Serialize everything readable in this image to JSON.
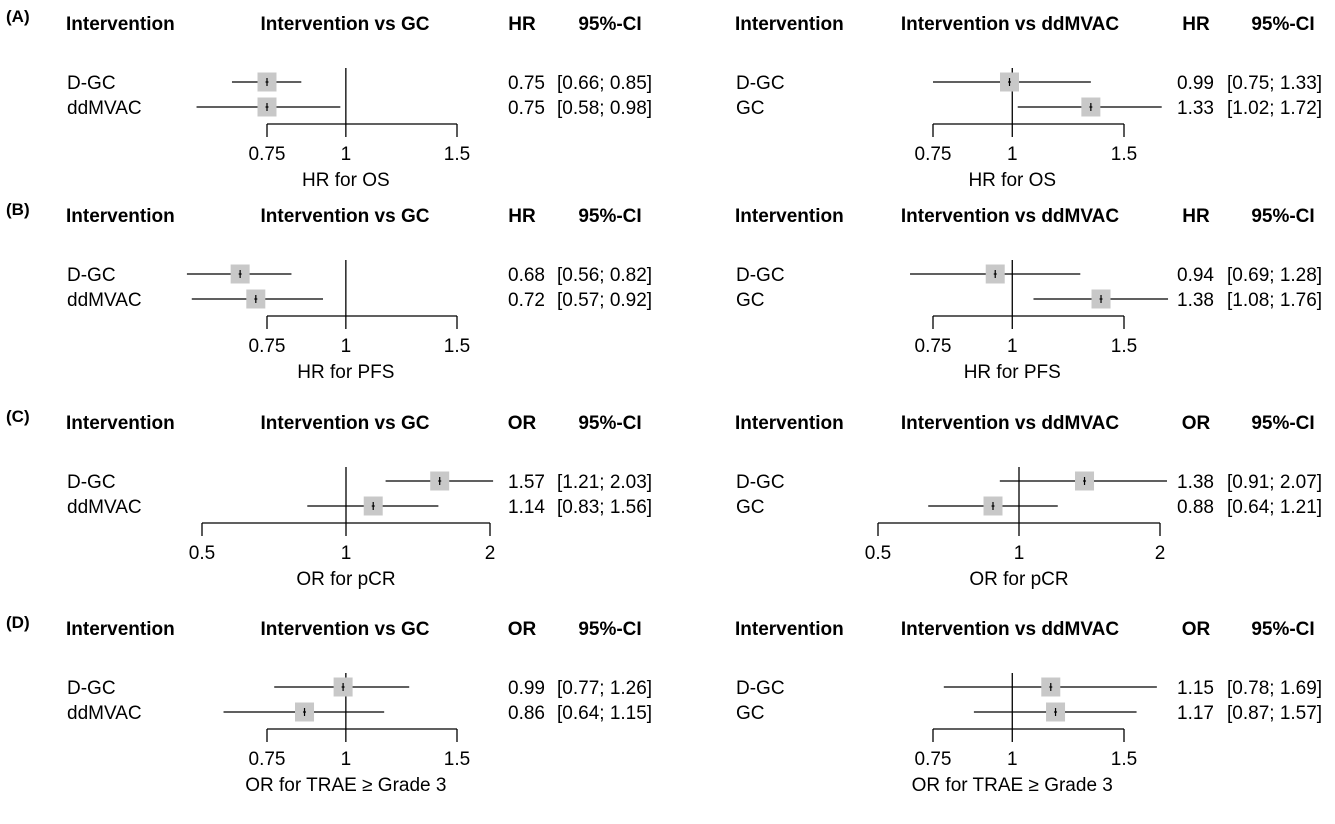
{
  "panel_labels": [
    "(A)",
    "(B)",
    "(C)",
    "(D)"
  ],
  "header": {
    "intervention": "Intervention"
  },
  "colors": {
    "box": "#c8c8c8",
    "line": "#000000"
  },
  "chart_data": [
    {
      "type": "forest",
      "panel": "(A)",
      "comparator": "GC",
      "title": "Intervention vs GC",
      "metric": "HR",
      "ci_label": "95%-CI",
      "xlabel": "HR for OS",
      "scale": "log",
      "ref": 1,
      "ticks": [
        0.75,
        1,
        1.5
      ],
      "tick_labels": [
        "0.75",
        "1",
        "1.5"
      ],
      "xlim": [
        0.62,
        1.5
      ],
      "rows": [
        {
          "label": "D-GC",
          "est": 0.75,
          "lo": 0.66,
          "hi": 0.85,
          "text": "0.75",
          "ci": "[0.66; 0.85]"
        },
        {
          "label": "ddMVAC",
          "est": 0.75,
          "lo": 0.58,
          "hi": 0.98,
          "text": "0.75",
          "ci": "[0.58; 0.98]"
        }
      ]
    },
    {
      "type": "forest",
      "panel": "(A)",
      "comparator": "ddMVAC",
      "title": "Intervention vs ddMVAC",
      "metric": "HR",
      "ci_label": "95%-CI",
      "xlabel": "HR for OS",
      "scale": "log",
      "ref": 1,
      "ticks": [
        0.75,
        1,
        1.5
      ],
      "tick_labels": [
        "0.75",
        "1",
        "1.5"
      ],
      "xlim": [
        0.62,
        1.5
      ],
      "rows": [
        {
          "label": "D-GC",
          "est": 0.99,
          "lo": 0.75,
          "hi": 1.33,
          "text": "0.99",
          "ci": "[0.75; 1.33]"
        },
        {
          "label": "GC",
          "est": 1.33,
          "lo": 1.02,
          "hi": 1.72,
          "text": "1.33",
          "ci": "[1.02; 1.72]"
        }
      ]
    },
    {
      "type": "forest",
      "panel": "(B)",
      "comparator": "GC",
      "title": "Intervention vs GC",
      "metric": "HR",
      "ci_label": "95%-CI",
      "xlabel": "HR for PFS",
      "scale": "log",
      "ref": 1,
      "ticks": [
        0.75,
        1,
        1.5
      ],
      "tick_labels": [
        "0.75",
        "1",
        "1.5"
      ],
      "xlim": [
        0.62,
        1.5
      ],
      "rows": [
        {
          "label": "D-GC",
          "est": 0.68,
          "lo": 0.56,
          "hi": 0.82,
          "text": "0.68",
          "ci": "[0.56; 0.82]"
        },
        {
          "label": "ddMVAC",
          "est": 0.72,
          "lo": 0.57,
          "hi": 0.92,
          "text": "0.72",
          "ci": "[0.57; 0.92]"
        }
      ]
    },
    {
      "type": "forest",
      "panel": "(B)",
      "comparator": "ddMVAC",
      "title": "Intervention vs ddMVAC",
      "metric": "HR",
      "ci_label": "95%-CI",
      "xlabel": "HR for PFS",
      "scale": "log",
      "ref": 1,
      "ticks": [
        0.75,
        1,
        1.5
      ],
      "tick_labels": [
        "0.75",
        "1",
        "1.5"
      ],
      "xlim": [
        0.62,
        1.5
      ],
      "rows": [
        {
          "label": "D-GC",
          "est": 0.94,
          "lo": 0.69,
          "hi": 1.28,
          "text": "0.94",
          "ci": "[0.69; 1.28]"
        },
        {
          "label": "GC",
          "est": 1.38,
          "lo": 1.08,
          "hi": 1.76,
          "text": "1.38",
          "ci": "[1.08; 1.76]"
        }
      ]
    },
    {
      "type": "forest",
      "panel": "(C)",
      "comparator": "GC",
      "title": "Intervention vs GC",
      "metric": "OR",
      "ci_label": "95%-CI",
      "xlabel": "OR for pCR",
      "scale": "log",
      "ref": 1,
      "ticks": [
        0.5,
        1,
        2
      ],
      "tick_labels": [
        "0.5",
        "1",
        "2"
      ],
      "xlim": [
        0.5,
        2.1
      ],
      "rows": [
        {
          "label": "D-GC",
          "est": 1.57,
          "lo": 1.21,
          "hi": 2.03,
          "text": "1.57",
          "ci": "[1.21; 2.03]"
        },
        {
          "label": "ddMVAC",
          "est": 1.14,
          "lo": 0.83,
          "hi": 1.56,
          "text": "1.14",
          "ci": "[0.83; 1.56]"
        }
      ]
    },
    {
      "type": "forest",
      "panel": "(C)",
      "comparator": "ddMVAC",
      "title": "Intervention vs ddMVAC",
      "metric": "OR",
      "ci_label": "95%-CI",
      "xlabel": "OR for pCR",
      "scale": "log",
      "ref": 1,
      "ticks": [
        0.5,
        1,
        2
      ],
      "tick_labels": [
        "0.5",
        "1",
        "2"
      ],
      "xlim": [
        0.5,
        2.1
      ],
      "rows": [
        {
          "label": "D-GC",
          "est": 1.38,
          "lo": 0.91,
          "hi": 2.07,
          "text": "1.38",
          "ci": "[0.91; 2.07]"
        },
        {
          "label": "GC",
          "est": 0.88,
          "lo": 0.64,
          "hi": 1.21,
          "text": "0.88",
          "ci": "[0.64; 1.21]"
        }
      ]
    },
    {
      "type": "forest",
      "panel": "(D)",
      "comparator": "GC",
      "title": "Intervention vs GC",
      "metric": "OR",
      "ci_label": "95%-CI",
      "xlabel": "OR for TRAE ≥ Grade 3",
      "scale": "log",
      "ref": 1,
      "ticks": [
        0.75,
        1,
        1.5
      ],
      "tick_labels": [
        "0.75",
        "1",
        "1.5"
      ],
      "xlim": [
        0.62,
        1.5
      ],
      "rows": [
        {
          "label": "D-GC",
          "est": 0.99,
          "lo": 0.77,
          "hi": 1.26,
          "text": "0.99",
          "ci": "[0.77; 1.26]"
        },
        {
          "label": "ddMVAC",
          "est": 0.86,
          "lo": 0.64,
          "hi": 1.15,
          "text": "0.86",
          "ci": "[0.64; 1.15]"
        }
      ]
    },
    {
      "type": "forest",
      "panel": "(D)",
      "comparator": "ddMVAC",
      "title": "Intervention vs ddMVAC",
      "metric": "OR",
      "ci_label": "95%-CI",
      "xlabel": "OR for TRAE ≥ Grade 3",
      "scale": "log",
      "ref": 1,
      "ticks": [
        0.75,
        1,
        1.5
      ],
      "tick_labels": [
        "0.75",
        "1",
        "1.5"
      ],
      "xlim": [
        0.62,
        1.5
      ],
      "rows": [
        {
          "label": "D-GC",
          "est": 1.15,
          "lo": 0.78,
          "hi": 1.69,
          "text": "1.15",
          "ci": "[0.78; 1.69]"
        },
        {
          "label": "GC",
          "est": 1.17,
          "lo": 0.87,
          "hi": 1.57,
          "text": "1.17",
          "ci": "[0.87; 1.57]"
        }
      ]
    }
  ]
}
